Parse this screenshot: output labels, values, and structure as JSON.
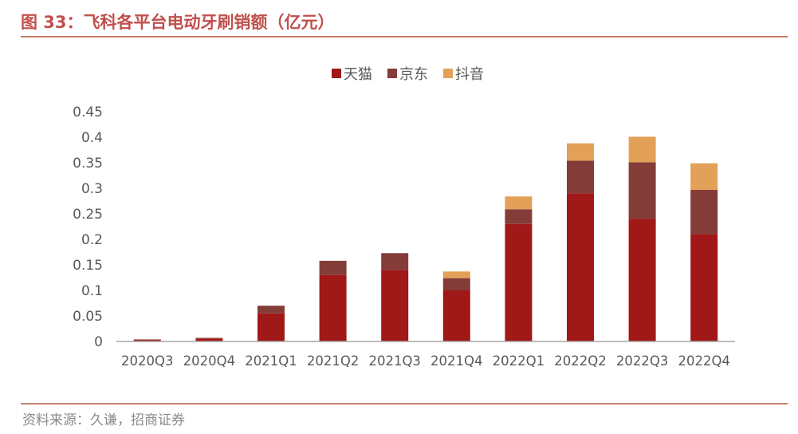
{
  "figure": {
    "title": "图 33：飞科各平台电动牙刷销额（亿元）",
    "source": "资料来源：久谦，招商证券"
  },
  "chart_data": {
    "type": "bar",
    "stacked": true,
    "categories": [
      "2020Q3",
      "2020Q4",
      "2021Q1",
      "2021Q2",
      "2021Q3",
      "2021Q4",
      "2022Q1",
      "2022Q2",
      "2022Q3",
      "2022Q4"
    ],
    "series": [
      {
        "name": "天猫",
        "color": "#a01818",
        "values": [
          0.003,
          0.006,
          0.055,
          0.13,
          0.14,
          0.1,
          0.23,
          0.29,
          0.24,
          0.21
        ]
      },
      {
        "name": "京东",
        "color": "#843c39",
        "values": [
          0.001,
          0.001,
          0.015,
          0.028,
          0.033,
          0.024,
          0.029,
          0.064,
          0.111,
          0.087
        ]
      },
      {
        "name": "抖音",
        "color": "#e3a058",
        "values": [
          0,
          0,
          0,
          0,
          0,
          0.013,
          0.025,
          0.034,
          0.05,
          0.052
        ]
      }
    ],
    "yticks": [
      "0",
      "0.05",
      "0.1",
      "0.15",
      "0.2",
      "0.25",
      "0.3",
      "0.35",
      "0.4",
      "0.45"
    ],
    "ylim": [
      0,
      0.45
    ],
    "grid": false,
    "legend": "top-center",
    "xlabel": "",
    "ylabel": ""
  }
}
